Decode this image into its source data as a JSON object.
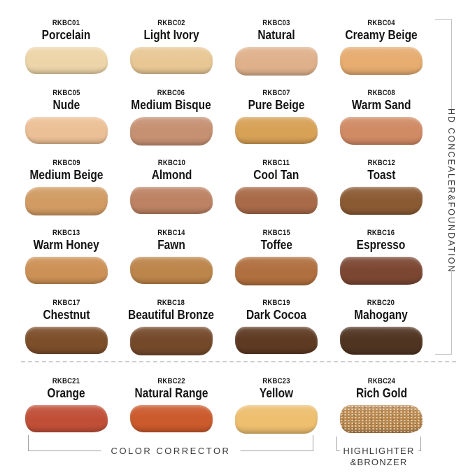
{
  "side_bracket": {
    "label": "HD CONCEALER&FOUNDATION"
  },
  "bottom_brackets": {
    "color_corrector": "COLOR CORRECTOR",
    "highlighter_line1": "HIGHLIGHTER",
    "highlighter_line2": "&BRONZER"
  },
  "style_colors": {
    "side_bracket_line": "#c4c4c4",
    "bottom_bracket_line": "#9e9e9e",
    "label_text": "#3a3a3a",
    "dashed_divider": "#cfcfcf"
  },
  "swatches": [
    {
      "code": "RKBC01",
      "name": "Porcelain",
      "color": "#edd5a9"
    },
    {
      "code": "RKBC02",
      "name": "Light Ivory",
      "color": "#e8c795"
    },
    {
      "code": "RKBC03",
      "name": "Natural",
      "color": "#dfb18b"
    },
    {
      "code": "RKBC04",
      "name": "Creamy Beige",
      "color": "#e6ac70"
    },
    {
      "code": "RKBC05",
      "name": "Nude",
      "color": "#ecc097"
    },
    {
      "code": "RKBC06",
      "name": "Medium Bisque",
      "color": "#c69072"
    },
    {
      "code": "RKBC07",
      "name": "Pure Beige",
      "color": "#d7a156"
    },
    {
      "code": "RKBC08",
      "name": "Warm Sand",
      "color": "#d08a64"
    },
    {
      "code": "RKBC09",
      "name": "Medium Beige",
      "color": "#d19b63"
    },
    {
      "code": "RKBC10",
      "name": "Almond",
      "color": "#bc8263"
    },
    {
      "code": "RKBC11",
      "name": "Cool Tan",
      "color": "#a86a48"
    },
    {
      "code": "RKBC12",
      "name": "Toast",
      "color": "#8a5a33"
    },
    {
      "code": "RKBC13",
      "name": "Warm Honey",
      "color": "#cc9156"
    },
    {
      "code": "RKBC14",
      "name": "Fawn",
      "color": "#bc854a"
    },
    {
      "code": "RKBC15",
      "name": "Toffee",
      "color": "#b06f3e"
    },
    {
      "code": "RKBC16",
      "name": "Espresso",
      "color": "#7b4733"
    },
    {
      "code": "RKBC17",
      "name": "Chestnut",
      "color": "#7c4e2a"
    },
    {
      "code": "RKBC18",
      "name": "Beautiful Bronze",
      "color": "#74492a"
    },
    {
      "code": "RKBC19",
      "name": "Dark Cocoa",
      "color": "#5e3a23"
    },
    {
      "code": "RKBC20",
      "name": "Mahogany",
      "color": "#4f3421"
    },
    {
      "code": "RKBC21",
      "name": "Orange",
      "color": "#c14f38"
    },
    {
      "code": "RKBC22",
      "name": "Natural Range",
      "color": "#cb5a2c"
    },
    {
      "code": "RKBC23",
      "name": "Yellow",
      "color": "#edbf6f"
    },
    {
      "code": "RKBC24",
      "name": "Rich Gold",
      "color": "#b8874e",
      "sparkle": true
    }
  ]
}
